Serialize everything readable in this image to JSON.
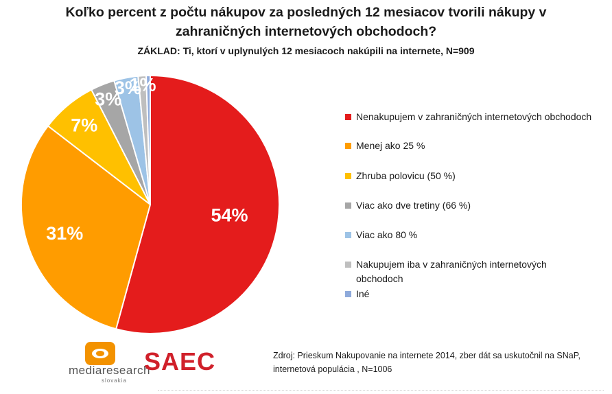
{
  "chart_data": {
    "type": "pie",
    "title": "Koľko percent z počtu nákupov za posledných 12 mesiacov tvorili nákupy v zahraničných internetových obchodoch?",
    "subtitle": "ZÁKLAD: Ti, ktorí v uplynulých 12 mesiacoch nakúpili na internete, N=909",
    "slices": [
      {
        "label": "Nenakupujem v zahraničných internetových obchodoch",
        "value": 54,
        "display": "54%",
        "color": "#e41c1c"
      },
      {
        "label": "Menej ako 25 %",
        "value": 31,
        "display": "31%",
        "color": "#ff9c00"
      },
      {
        "label": "Zhruba polovicu (50 %)",
        "value": 7,
        "display": "7%",
        "color": "#ffc000"
      },
      {
        "label": "Viac ako dve tretiny (66 %)",
        "value": 3,
        "display": "3%",
        "color": "#a6a6a6"
      },
      {
        "label": "Viac ako 80 %",
        "value": 3,
        "display": "3%",
        "color": "#9dc3e6"
      },
      {
        "label": "Nakupujem iba v zahraničných internetových obchodoch",
        "value": 1,
        "display": "1%",
        "color": "#bfbfbf"
      },
      {
        "label": "Iné",
        "value": 0.5,
        "display": "",
        "color": "#8eaadb"
      }
    ],
    "legend_position": "right"
  },
  "source": {
    "line1": "Zdroj:  Prieskum Nakupovanie na internete 2014, zber dát sa uskutočnil na SNaP,",
    "line2": "internetová populácia , N=1006"
  },
  "logos": {
    "mediaresearch": "mediaresearch",
    "mediaresearch_sub": "slovakia",
    "saec": "SAEC"
  },
  "colors": {
    "saec_red": "#d0202a",
    "mr_orange": "#f39200"
  }
}
